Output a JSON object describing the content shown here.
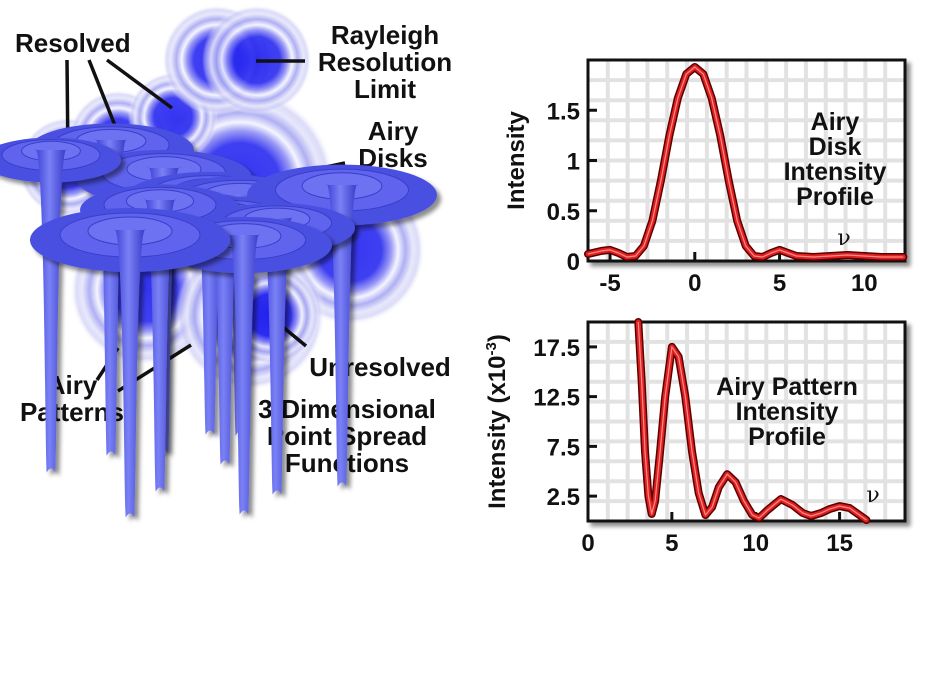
{
  "labels": {
    "resolved": "Resolved",
    "rayleigh": [
      "Rayleigh",
      "Resolution",
      "Limit"
    ],
    "airy_disks": [
      "Airy",
      "Disks"
    ],
    "unresolved": "Unresolved",
    "airy_patterns": [
      "Airy",
      "Patterns"
    ],
    "psf": [
      "3-Dimensional",
      "Point Spread",
      "Functions"
    ]
  },
  "colors": {
    "disk": "#2a2af0",
    "cone": "#5a60e8",
    "curve": "#e02020"
  },
  "chart_data": [
    {
      "type": "line",
      "title": [
        "Airy",
        "Disk",
        "Intensity",
        "Profile"
      ],
      "xlabel": "ν",
      "ylabel": "Intensity",
      "xlim": [
        -6.3,
        12.4
      ],
      "ylim": [
        0,
        2.0
      ],
      "xticks": [
        -5,
        0,
        5,
        10
      ],
      "xtick_labels": [
        "-5",
        "0",
        "5",
        "10"
      ],
      "yticks": [
        0,
        0.5,
        1,
        1.5
      ],
      "ytick_labels": [
        "0",
        "0.5",
        "1",
        "1.5"
      ],
      "grid": true,
      "x": [
        -6.3,
        -5.5,
        -5,
        -4.5,
        -4,
        -3.5,
        -3,
        -2.5,
        -2,
        -1.5,
        -1,
        -0.5,
        0,
        0.5,
        1,
        1.5,
        2,
        2.5,
        3,
        3.5,
        4,
        4.5,
        5,
        5.5,
        6,
        7,
        8,
        9,
        10,
        11,
        12.3
      ],
      "y": [
        0.07,
        0.1,
        0.11,
        0.08,
        0.04,
        0.05,
        0.15,
        0.4,
        0.8,
        1.25,
        1.62,
        1.86,
        1.93,
        1.86,
        1.62,
        1.25,
        0.8,
        0.4,
        0.15,
        0.05,
        0.04,
        0.08,
        0.11,
        0.08,
        0.05,
        0.04,
        0.05,
        0.06,
        0.05,
        0.04,
        0.04
      ]
    },
    {
      "type": "line",
      "title": [
        "Airy Pattern",
        "Intensity",
        "Profile"
      ],
      "xlabel": "ν",
      "ylabel": "Intensity (x10",
      "ylabel_sup": "-3",
      "ylabel_end": ")",
      "xlim": [
        0,
        18.9
      ],
      "ylim": [
        0,
        20
      ],
      "xticks": [
        0,
        5,
        10,
        15
      ],
      "xtick_labels": [
        "0",
        "5",
        "10",
        "15"
      ],
      "yticks": [
        2.5,
        7.5,
        12.5,
        17.5
      ],
      "ytick_labels": [
        "2.5",
        "7.5",
        "12.5",
        "17.5"
      ],
      "grid": true,
      "x": [
        3.0,
        3.2,
        3.4,
        3.6,
        3.8,
        4.0,
        4.3,
        4.6,
        5.0,
        5.4,
        5.8,
        6.2,
        6.6,
        7.0,
        7.4,
        7.8,
        8.3,
        8.8,
        9.3,
        9.8,
        10.2,
        10.7,
        11.5,
        12.2,
        12.8,
        13.3,
        13.9,
        14.4,
        15.0,
        15.6,
        16.1,
        16.6
      ],
      "y": [
        20,
        14,
        7,
        2.5,
        0.7,
        2,
        7,
        12.5,
        17.5,
        16.5,
        12.5,
        7,
        2.8,
        0.6,
        1.4,
        3.4,
        4.7,
        3.9,
        2,
        0.6,
        0.3,
        1.1,
        2.2,
        1.6,
        0.8,
        0.5,
        0.8,
        1.2,
        1.5,
        1.3,
        0.7,
        0.1
      ]
    }
  ]
}
